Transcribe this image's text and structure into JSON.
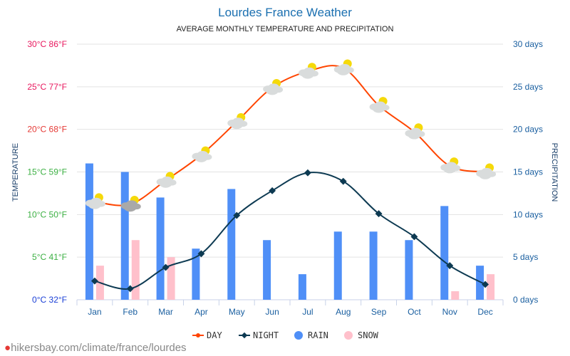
{
  "title": "Lourdes France Weather",
  "subtitle": "AVERAGE MONTHLY TEMPERATURE AND PRECIPITATION",
  "url": "hikersbay.com/climate/france/lourdes",
  "chart_data": {
    "type": "bar+line",
    "categories": [
      "Jan",
      "Feb",
      "Mar",
      "Apr",
      "May",
      "Jun",
      "Jul",
      "Aug",
      "Sep",
      "Oct",
      "Nov",
      "Dec"
    ],
    "ylabel_left": "TEMPERATURE",
    "ylabel_right": "PRECIPITATION",
    "left_ticks": [
      "0°C 32°F",
      "5°C 41°F",
      "10°C 50°F",
      "15°C 59°F",
      "20°C 68°F",
      "25°C 77°F",
      "30°C 86°F"
    ],
    "left_tick_colors": [
      "#1a3fd6",
      "#3cb043",
      "#3cb043",
      "#3cb043",
      "#e53935",
      "#e8175d",
      "#e8175d"
    ],
    "right_ticks": [
      "0 days",
      "5 days",
      "10 days",
      "15 days",
      "20 days",
      "25 days",
      "30 days"
    ],
    "ylim": [
      0,
      30
    ],
    "grid": true,
    "legend_position": "bottom",
    "series": [
      {
        "name": "DAY",
        "type": "line",
        "color": "#ff4500",
        "values": [
          11.5,
          11.2,
          14,
          17,
          20.9,
          24.9,
          26.8,
          27.2,
          22.8,
          19.7,
          15.7,
          15
        ]
      },
      {
        "name": "NIGHT",
        "type": "line",
        "color": "#0d3a52",
        "values": [
          2.2,
          1.3,
          3.8,
          5.4,
          9.9,
          12.8,
          14.9,
          13.9,
          10.1,
          7.4,
          4,
          1.8
        ]
      },
      {
        "name": "RAIN",
        "type": "bar",
        "color": "#4f8ff7",
        "values": [
          16,
          15,
          12,
          6,
          13,
          7,
          3,
          8,
          8,
          7,
          11,
          4
        ]
      },
      {
        "name": "SNOW",
        "type": "bar",
        "color": "#ffc0cb",
        "values": [
          4,
          7,
          5,
          0,
          0,
          0,
          0,
          0,
          0,
          0,
          1,
          3
        ]
      }
    ]
  }
}
